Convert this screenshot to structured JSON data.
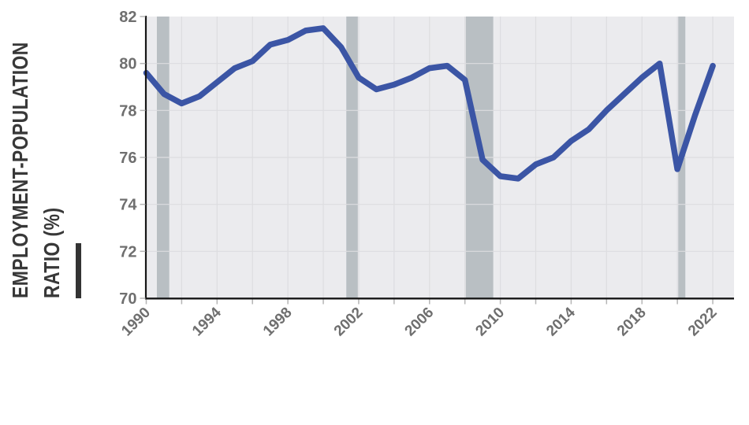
{
  "page": {
    "background": "#ffffff"
  },
  "colors": {
    "line": "#3B55A5",
    "plot_bg": "#EBEBEE",
    "gridline": "#DDDDE0",
    "recession_band": "#B9BFC3",
    "axis_line": "#161616",
    "tick_mark": "#B5B5B5",
    "tick_label": "#6F6F6F",
    "axis_title": "#383838",
    "accent_bar": "#333333"
  },
  "chart_data": {
    "type": "line",
    "title": "",
    "xlabel": "",
    "ylabel_lines": [
      "EMPLOYMENT-POPULATION",
      "RATIO (%)"
    ],
    "x": [
      1990,
      1991,
      1992,
      1993,
      1994,
      1995,
      1996,
      1997,
      1998,
      1999,
      2000,
      2001,
      2002,
      2003,
      2004,
      2005,
      2006,
      2007,
      2008,
      2009,
      2010,
      2011,
      2012,
      2013,
      2014,
      2015,
      2016,
      2017,
      2018,
      2019,
      2020,
      2021,
      2022
    ],
    "series": [
      {
        "name": "Employment-population ratio (%)",
        "color": "#3B55A5",
        "values": [
          79.6,
          78.7,
          78.3,
          78.6,
          79.2,
          79.8,
          80.1,
          80.8,
          81.0,
          81.4,
          81.5,
          80.7,
          79.4,
          78.9,
          79.1,
          79.4,
          79.8,
          79.9,
          79.3,
          75.9,
          75.2,
          75.1,
          75.7,
          76.0,
          76.7,
          77.2,
          78.0,
          78.7,
          79.4,
          80.0,
          75.5,
          77.8,
          79.9
        ]
      }
    ],
    "ylim": [
      70,
      82
    ],
    "xlim": [
      1990,
      2023.2
    ],
    "y_ticks": [
      70,
      72,
      74,
      76,
      78,
      80,
      82
    ],
    "x_tick_labels": [
      1990,
      1994,
      1998,
      2002,
      2006,
      2010,
      2014,
      2018,
      2022
    ],
    "x_minor_tick_step": 2,
    "grid": true,
    "legend_position": "none",
    "recession_bands": [
      [
        1990.6,
        1991.3
      ],
      [
        2001.3,
        2001.95
      ],
      [
        2008.05,
        2009.6
      ],
      [
        2020.05,
        2020.45
      ]
    ]
  }
}
